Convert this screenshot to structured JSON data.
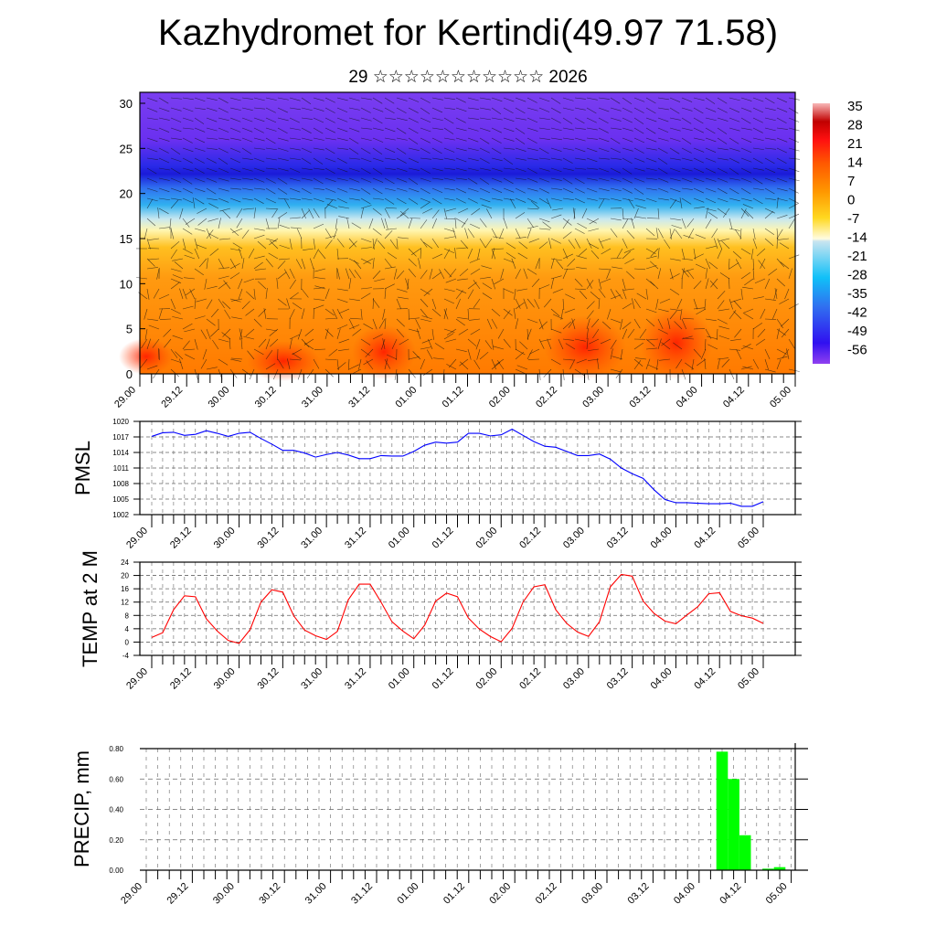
{
  "title": "Kazhydromet for Kertindi(49.97 71.58)",
  "subtitle": "29 ☆☆☆☆☆☆☆☆☆☆☆ 2026",
  "x_tick_labels": [
    "29.00",
    "29.12",
    "30.00",
    "30.12",
    "31.00",
    "31.12",
    "01.00",
    "01.12",
    "02.00",
    "02.12",
    "03.00",
    "03.12",
    "04.00",
    "04.12",
    "05.00"
  ],
  "chart_data": [
    {
      "type": "heatmap",
      "name": "cross-section temperature and wind",
      "ylabel": "",
      "ylim": [
        0,
        30
      ],
      "y_ticks": [
        "0",
        "5",
        "10",
        "15",
        "20",
        "25",
        "30"
      ],
      "colorbar_labels": [
        "35",
        "28",
        "21",
        "14",
        "7",
        "0",
        "-7",
        "-14",
        "-21",
        "-28",
        "-35",
        "-42",
        "-49",
        "-56"
      ],
      "colorbar_range": [
        -60,
        38
      ]
    },
    {
      "type": "line",
      "ylabel": "PMSL",
      "ylim": [
        1002,
        1020
      ],
      "y_ticks": [
        "1020",
        "1017",
        "1014",
        "1011",
        "1008",
        "1005",
        "1002"
      ],
      "color": "#0000ff",
      "values": [
        1017.1,
        1017.8,
        1017.9,
        1017.3,
        1017.5,
        1018.2,
        1017.7,
        1017.1,
        1017.7,
        1017.9,
        1016.7,
        1015.6,
        1014.4,
        1014.4,
        1013.9,
        1013.1,
        1013.6,
        1014.0,
        1013.5,
        1012.8,
        1012.8,
        1013.4,
        1013.3,
        1013.3,
        1014.2,
        1015.4,
        1016.0,
        1015.8,
        1016.0,
        1017.7,
        1017.7,
        1017.2,
        1017.4,
        1018.5,
        1017.3,
        1016.1,
        1015.2,
        1015.0,
        1014.2,
        1013.4,
        1013.4,
        1013.7,
        1012.7,
        1011.0,
        1009.9,
        1009.0,
        1006.8,
        1004.9,
        1004.3,
        1004.3,
        1004.2,
        1004.1,
        1004.1,
        1004.2,
        1003.6,
        1003.6,
        1004.5
      ]
    },
    {
      "type": "line",
      "ylabel": "TEMP at 2 M",
      "ylim": [
        -4,
        24
      ],
      "y_ticks": [
        "24",
        "20",
        "16",
        "12",
        "8",
        "4",
        "0",
        "-4"
      ],
      "color": "#ff0000",
      "values": [
        1.4,
        2.8,
        9.7,
        13.9,
        13.6,
        7.0,
        3.3,
        0.5,
        -0.4,
        3.7,
        12.0,
        15.7,
        15.0,
        7.9,
        3.6,
        1.9,
        0.8,
        3.2,
        12.7,
        17.4,
        17.4,
        12.0,
        6.1,
        3.3,
        1.0,
        5.1,
        12.3,
        14.7,
        13.6,
        7.2,
        3.9,
        1.7,
        0.1,
        4.1,
        12.0,
        16.6,
        17.2,
        9.7,
        5.6,
        3.0,
        1.7,
        6.1,
        16.6,
        20.3,
        19.8,
        12.3,
        8.6,
        6.3,
        5.5,
        8.1,
        10.6,
        14.5,
        14.8,
        9.2,
        7.9,
        7.2,
        5.6
      ]
    },
    {
      "type": "bar",
      "ylabel": "PRECIP, mm",
      "ylim": [
        0,
        0.8
      ],
      "y_ticks": [
        "0.80",
        "0.60",
        "0.40",
        "0.20",
        "0.00"
      ],
      "color": "#00ff00",
      "bars": [
        {
          "step": 50,
          "value": 0.78
        },
        {
          "step": 51,
          "value": 0.6
        },
        {
          "step": 52,
          "value": 0.23
        },
        {
          "step": 54,
          "value": 0.01
        },
        {
          "step": 55,
          "value": 0.02
        }
      ]
    }
  ]
}
